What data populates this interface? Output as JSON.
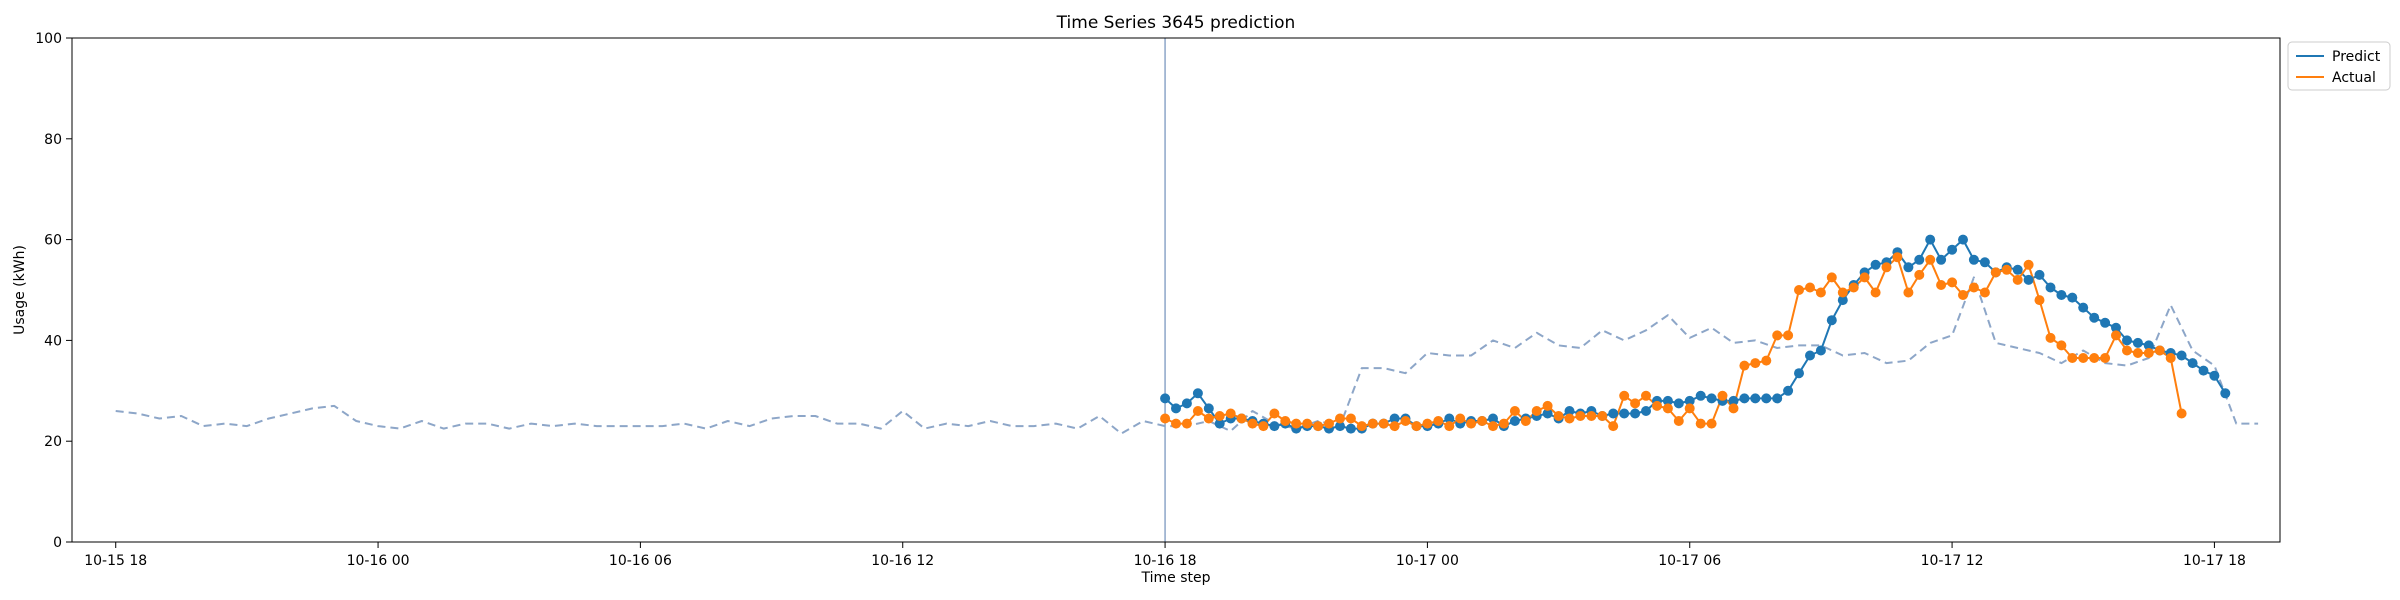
{
  "chart_data": {
    "type": "line",
    "title": "Time Series 3645 prediction",
    "xlabel": "Time step",
    "ylabel": "Usage (kWh)",
    "ylim": [
      0,
      100
    ],
    "yticks": [
      0,
      20,
      40,
      60,
      80,
      100
    ],
    "xlim": [
      "2023-10-15 17:00",
      "2023-10-17 19:30"
    ],
    "xticks": [
      {
        "at": "2023-10-15 18:00",
        "label": "10-15 18"
      },
      {
        "at": "2023-10-16 00:00",
        "label": "10-16 00"
      },
      {
        "at": "2023-10-16 06:00",
        "label": "10-16 06"
      },
      {
        "at": "2023-10-16 12:00",
        "label": "10-16 12"
      },
      {
        "at": "2023-10-16 18:00",
        "label": "10-16 18"
      },
      {
        "at": "2023-10-17 00:00",
        "label": "10-17 00"
      },
      {
        "at": "2023-10-17 06:00",
        "label": "10-17 06"
      },
      {
        "at": "2023-10-17 12:00",
        "label": "10-17 12"
      },
      {
        "at": "2023-10-17 18:00",
        "label": "10-17 18"
      }
    ],
    "step_minutes": 15,
    "grid": false,
    "legend_position": "outside top-right",
    "forecast_start": "2023-10-16 18:00",
    "history": {
      "start": "2023-10-15 18:00",
      "step_minutes": 30,
      "color": "#8da6c8",
      "style": "dashed",
      "values": [
        26,
        25.5,
        24.5,
        25,
        23,
        23.5,
        23,
        24.5,
        25.5,
        26.5,
        27,
        24,
        23,
        22.5,
        24,
        22.5,
        23.5,
        23.5,
        22.5,
        23.5,
        23,
        23.5,
        23,
        23,
        23,
        23,
        23.5,
        22.5,
        24,
        23,
        24.5,
        25,
        25,
        23.5,
        23.5,
        22.5,
        26,
        22.5,
        23.5,
        23,
        24,
        23,
        23,
        23.5,
        22.5,
        25,
        21.5,
        24,
        23,
        23,
        24,
        22,
        26,
        23.5,
        22.5,
        24,
        23,
        34.5,
        34.5,
        33.5,
        37.5,
        37,
        37,
        40,
        38.5,
        41.5,
        39,
        38.5,
        42,
        40,
        42,
        45,
        40.5,
        42.5,
        39.5,
        40,
        38.5,
        39,
        39,
        37,
        37.5,
        35.5,
        36,
        39.5,
        41,
        52.5,
        39.5,
        38.5,
        37.5,
        35.5,
        38,
        35.5,
        35,
        36.5,
        47,
        38,
        35,
        23.5,
        23.5
      ]
    },
    "series": [
      {
        "name": "Predict",
        "color": "#1f77b4",
        "start": "2023-10-16 18:00",
        "values": [
          28.5,
          26.5,
          27.5,
          29.5,
          26.5,
          23.5,
          24.5,
          24.5,
          24,
          23.5,
          23,
          23.5,
          22.5,
          23,
          23,
          22.5,
          23,
          22.5,
          22.5,
          23.5,
          23.5,
          24.5,
          24.5,
          23,
          23,
          23.5,
          24.5,
          23.5,
          24,
          24,
          24.5,
          23,
          24,
          24.5,
          25,
          25.5,
          24.5,
          26,
          25.5,
          26,
          25,
          25.5,
          25.5,
          25.5,
          26,
          28,
          28,
          27.5,
          28,
          29,
          28.5,
          28,
          28,
          28.5,
          28.5,
          28.5,
          28.5,
          30,
          33.5,
          37,
          38,
          44,
          48,
          51,
          53.5,
          55,
          55.5,
          57.5,
          54.5,
          56,
          60,
          56,
          58,
          60,
          56,
          55.5,
          53.5,
          54.5,
          54,
          52,
          53,
          50.5,
          49,
          48.5,
          46.5,
          44.5,
          43.5,
          42.5,
          40,
          39.5,
          39,
          38,
          37.5,
          37,
          35.5,
          34,
          33,
          29.5
        ]
      },
      {
        "name": "Actual",
        "color": "#ff7f0e",
        "start": "2023-10-16 18:00",
        "values": [
          24.5,
          23.5,
          23.5,
          26,
          24.5,
          25,
          25.5,
          24.5,
          23.5,
          23,
          25.5,
          24,
          23.5,
          23.5,
          23,
          23.5,
          24.5,
          24.5,
          23,
          23.5,
          23.5,
          23,
          24,
          23,
          23.5,
          24,
          23,
          24.5,
          23.5,
          24,
          23,
          23.5,
          26,
          24,
          26,
          27,
          25,
          24.5,
          25,
          25,
          25,
          23,
          29,
          27.5,
          29,
          27,
          26.5,
          24,
          26.5,
          23.5,
          23.5,
          29,
          26.5,
          35,
          35.5,
          36,
          41,
          41,
          50,
          50.5,
          49.5,
          52.5,
          49.5,
          50.5,
          52.5,
          49.5,
          54.5,
          56.5,
          49.5,
          53,
          56,
          51,
          51.5,
          49,
          50.5,
          49.5,
          53.5,
          54,
          52,
          55,
          48,
          40.5,
          39,
          36.5,
          36.5,
          36.5,
          36.5,
          41,
          38,
          37.5,
          37.5,
          38,
          36.5,
          25.5
        ]
      }
    ]
  }
}
